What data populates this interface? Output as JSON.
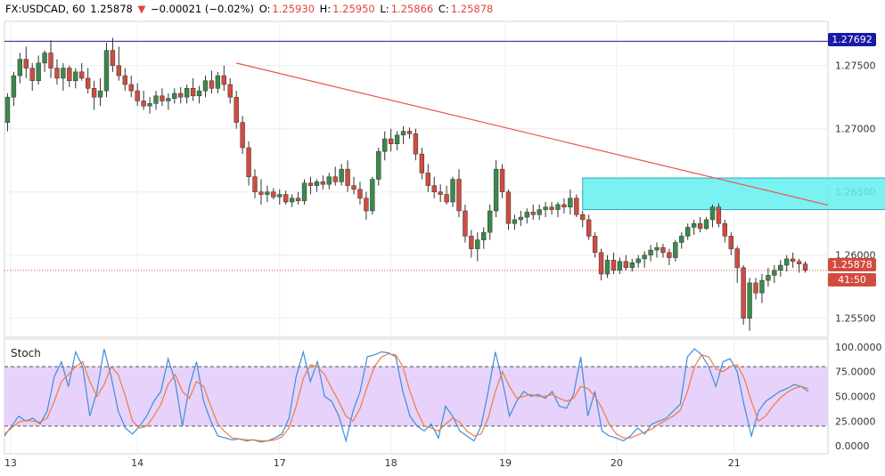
{
  "header": {
    "symbol": "FX:USDCAD, 60",
    "last": "1.25878",
    "change_arrow": "▼",
    "change": "−0.00021 (−0.02%)",
    "o_label": "O:",
    "o": "1.25930",
    "h_label": "H:",
    "h": "1.25950",
    "l_label": "L:",
    "l": "1.25866",
    "c_label": "C:",
    "c": "1.25878"
  },
  "colors": {
    "up": "#3a8a4b",
    "down": "#d24b3f",
    "trend": "#ef5350",
    "zone": "#64f0f0",
    "hline": "#1a1aa6",
    "stoch_k": "#3d8fd6",
    "stoch_d": "#f07b3f",
    "band": "#e6d2fb"
  },
  "badges": {
    "resistance": "1.27692",
    "price": "1.25878",
    "countdown": "41:50"
  },
  "stoch": {
    "label": "Stoch"
  },
  "chart_data": [
    {
      "type": "candlestick",
      "title": "FX:USDCAD, 60",
      "y_axis_ticks": [
        "1.27500",
        "1.27000",
        "1.26500",
        "1.26000",
        "1.25500"
      ],
      "ylim": [
        1.2535,
        1.2785
      ],
      "x_axis_ticks": [
        "13",
        "14",
        "17",
        "18",
        "19",
        "20",
        "21"
      ],
      "candles": [
        [
          1.2705,
          1.2728,
          1.2698,
          1.2725
        ],
        [
          1.2725,
          1.2745,
          1.2718,
          1.2742
        ],
        [
          1.2742,
          1.276,
          1.2736,
          1.2755
        ],
        [
          1.2755,
          1.2765,
          1.274,
          1.2748
        ],
        [
          1.2748,
          1.2752,
          1.273,
          1.2738
        ],
        [
          1.2738,
          1.2758,
          1.2735,
          1.2752
        ],
        [
          1.2752,
          1.2762,
          1.2745,
          1.276
        ],
        [
          1.276,
          1.277,
          1.274,
          1.2748
        ],
        [
          1.2748,
          1.2755,
          1.2735,
          1.274
        ],
        [
          1.274,
          1.2752,
          1.273,
          1.2748
        ],
        [
          1.2748,
          1.275,
          1.2733,
          1.2738
        ],
        [
          1.2738,
          1.2748,
          1.2732,
          1.2745
        ],
        [
          1.2745,
          1.2752,
          1.2738,
          1.274
        ],
        [
          1.274,
          1.2748,
          1.2728,
          1.2732
        ],
        [
          1.2732,
          1.2738,
          1.2715,
          1.2725
        ],
        [
          1.2725,
          1.274,
          1.2718,
          1.273
        ],
        [
          1.273,
          1.2768,
          1.2725,
          1.2762
        ],
        [
          1.2762,
          1.2772,
          1.2745,
          1.275
        ],
        [
          1.275,
          1.2765,
          1.2738,
          1.2742
        ],
        [
          1.2742,
          1.2748,
          1.273,
          1.2735
        ],
        [
          1.2735,
          1.2742,
          1.2725,
          1.273
        ],
        [
          1.273,
          1.2736,
          1.2718,
          1.2722
        ],
        [
          1.2722,
          1.273,
          1.2715,
          1.2718
        ],
        [
          1.2718,
          1.2725,
          1.2712,
          1.272
        ],
        [
          1.272,
          1.273,
          1.2715,
          1.2726
        ],
        [
          1.2726,
          1.2732,
          1.2718,
          1.2722
        ],
        [
          1.2722,
          1.2728,
          1.2715,
          1.2724
        ],
        [
          1.2724,
          1.2732,
          1.272,
          1.2728
        ],
        [
          1.2728,
          1.2733,
          1.272,
          1.2725
        ],
        [
          1.2725,
          1.2735,
          1.272,
          1.2732
        ],
        [
          1.2732,
          1.274,
          1.2722,
          1.2726
        ],
        [
          1.2726,
          1.2734,
          1.272,
          1.273
        ],
        [
          1.273,
          1.2742,
          1.2725,
          1.2738
        ],
        [
          1.2738,
          1.2746,
          1.2728,
          1.2732
        ],
        [
          1.2732,
          1.2745,
          1.2728,
          1.2742
        ],
        [
          1.2742,
          1.275,
          1.273,
          1.2735
        ],
        [
          1.2735,
          1.274,
          1.272,
          1.2725
        ],
        [
          1.2725,
          1.273,
          1.27,
          1.2705
        ],
        [
          1.2705,
          1.271,
          1.268,
          1.2685
        ],
        [
          1.2685,
          1.269,
          1.2655,
          1.2662
        ],
        [
          1.2662,
          1.2668,
          1.2645,
          1.265
        ],
        [
          1.265,
          1.266,
          1.264,
          1.2648
        ],
        [
          1.2648,
          1.2655,
          1.2642,
          1.265
        ],
        [
          1.265,
          1.2653,
          1.2644,
          1.2646
        ],
        [
          1.2646,
          1.2652,
          1.264,
          1.2648
        ],
        [
          1.2648,
          1.2651,
          1.264,
          1.2642
        ],
        [
          1.2642,
          1.2648,
          1.2638,
          1.2645
        ],
        [
          1.2645,
          1.265,
          1.264,
          1.2643
        ],
        [
          1.2643,
          1.266,
          1.264,
          1.2657
        ],
        [
          1.2657,
          1.2662,
          1.2648,
          1.2655
        ],
        [
          1.2655,
          1.266,
          1.265,
          1.2658
        ],
        [
          1.2658,
          1.2663,
          1.2652,
          1.2656
        ],
        [
          1.2656,
          1.2665,
          1.2652,
          1.2662
        ],
        [
          1.2662,
          1.267,
          1.2655,
          1.2658
        ],
        [
          1.2658,
          1.2672,
          1.2655,
          1.2668
        ],
        [
          1.2668,
          1.2675,
          1.265,
          1.2655
        ],
        [
          1.2655,
          1.2662,
          1.2648,
          1.2652
        ],
        [
          1.2652,
          1.2658,
          1.264,
          1.2645
        ],
        [
          1.2645,
          1.265,
          1.2628,
          1.2635
        ],
        [
          1.2635,
          1.2662,
          1.2632,
          1.266
        ],
        [
          1.266,
          1.2685,
          1.2655,
          1.2682
        ],
        [
          1.2682,
          1.2698,
          1.2675,
          1.2692
        ],
        [
          1.2692,
          1.27,
          1.2682,
          1.2688
        ],
        [
          1.2688,
          1.2698,
          1.2683,
          1.2695
        ],
        [
          1.2695,
          1.2702,
          1.2688,
          1.2698
        ],
        [
          1.2698,
          1.2701,
          1.2692,
          1.2696
        ],
        [
          1.2696,
          1.27,
          1.2675,
          1.268
        ],
        [
          1.268,
          1.2685,
          1.266,
          1.2665
        ],
        [
          1.2665,
          1.2672,
          1.265,
          1.2655
        ],
        [
          1.2655,
          1.2662,
          1.2645,
          1.265
        ],
        [
          1.265,
          1.2656,
          1.2642,
          1.2648
        ],
        [
          1.2648,
          1.2655,
          1.264,
          1.2642
        ],
        [
          1.2642,
          1.2662,
          1.2638,
          1.266
        ],
        [
          1.266,
          1.2668,
          1.263,
          1.2635
        ],
        [
          1.2635,
          1.264,
          1.261,
          1.2615
        ],
        [
          1.2615,
          1.262,
          1.2598,
          1.2605
        ],
        [
          1.2605,
          1.2618,
          1.2595,
          1.2612
        ],
        [
          1.2612,
          1.2622,
          1.2605,
          1.2618
        ],
        [
          1.2618,
          1.264,
          1.2612,
          1.2635
        ],
        [
          1.2635,
          1.2675,
          1.263,
          1.2668
        ],
        [
          1.2668,
          1.2672,
          1.2645,
          1.265
        ],
        [
          1.265,
          1.2652,
          1.262,
          1.2625
        ],
        [
          1.2625,
          1.2632,
          1.262,
          1.2628
        ],
        [
          1.2628,
          1.2635,
          1.2623,
          1.263
        ],
        [
          1.263,
          1.2637,
          1.2625,
          1.2634
        ],
        [
          1.2634,
          1.264,
          1.2628,
          1.2632
        ],
        [
          1.2632,
          1.264,
          1.2628,
          1.2636
        ],
        [
          1.2636,
          1.2642,
          1.263,
          1.2638
        ],
        [
          1.2638,
          1.2642,
          1.2632,
          1.2636
        ],
        [
          1.2636,
          1.2642,
          1.263,
          1.264
        ],
        [
          1.264,
          1.2645,
          1.2633,
          1.2638
        ],
        [
          1.2638,
          1.2652,
          1.2632,
          1.2645
        ],
        [
          1.2645,
          1.2648,
          1.263,
          1.2632
        ],
        [
          1.2632,
          1.2635,
          1.2622,
          1.2628
        ],
        [
          1.2628,
          1.2632,
          1.2612,
          1.2615
        ],
        [
          1.2615,
          1.2618,
          1.2598,
          1.2602
        ],
        [
          1.2602,
          1.2605,
          1.258,
          1.2585
        ],
        [
          1.2585,
          1.26,
          1.2582,
          1.2596
        ],
        [
          1.2596,
          1.2602,
          1.2585,
          1.2588
        ],
        [
          1.2588,
          1.2598,
          1.2585,
          1.2595
        ],
        [
          1.2595,
          1.26,
          1.2588,
          1.259
        ],
        [
          1.259,
          1.2597,
          1.2587,
          1.2594
        ],
        [
          1.2594,
          1.26,
          1.259,
          1.2597
        ],
        [
          1.2597,
          1.2603,
          1.259,
          1.26
        ],
        [
          1.26,
          1.2608,
          1.2595,
          1.2604
        ],
        [
          1.2604,
          1.261,
          1.2598,
          1.2606
        ],
        [
          1.2606,
          1.2609,
          1.2598,
          1.2602
        ],
        [
          1.2602,
          1.2605,
          1.2592,
          1.2598
        ],
        [
          1.2598,
          1.2612,
          1.2595,
          1.261
        ],
        [
          1.261,
          1.2618,
          1.2605,
          1.2615
        ],
        [
          1.2615,
          1.2625,
          1.2612,
          1.2622
        ],
        [
          1.2622,
          1.2628,
          1.2616,
          1.2625
        ],
        [
          1.2625,
          1.263,
          1.2618,
          1.2621
        ],
        [
          1.2621,
          1.263,
          1.262,
          1.2628
        ],
        [
          1.2628,
          1.264,
          1.2622,
          1.2638
        ],
        [
          1.2638,
          1.2641,
          1.2622,
          1.2625
        ],
        [
          1.2625,
          1.2628,
          1.261,
          1.2615
        ],
        [
          1.2615,
          1.2618,
          1.26,
          1.2605
        ],
        [
          1.2605,
          1.2607,
          1.2578,
          1.259
        ],
        [
          1.259,
          1.2592,
          1.2545,
          1.255
        ],
        [
          1.255,
          1.2582,
          1.254,
          1.2578
        ],
        [
          1.2578,
          1.2582,
          1.2565,
          1.257
        ],
        [
          1.257,
          1.2585,
          1.2562,
          1.258
        ],
        [
          1.258,
          1.259,
          1.2575,
          1.2584
        ],
        [
          1.2584,
          1.2592,
          1.2578,
          1.2588
        ],
        [
          1.2588,
          1.2596,
          1.2583,
          1.2592
        ],
        [
          1.2592,
          1.26,
          1.2587,
          1.2597
        ],
        [
          1.2597,
          1.2602,
          1.259,
          1.2595
        ],
        [
          1.2595,
          1.2597,
          1.2586,
          1.2593
        ],
        [
          1.2593,
          1.2595,
          1.2586,
          1.2588
        ]
      ],
      "resistance_level": 1.27692,
      "current_price": 1.25878,
      "trendline": [
        [
          37,
          1.2752
        ],
        [
          151,
          1.2618
        ]
      ],
      "zone": {
        "x": [
          93,
          150
        ],
        "y": [
          1.2636,
          1.2661
        ]
      }
    },
    {
      "type": "line",
      "title": "Stoch",
      "y_axis_ticks": [
        "100.0000",
        "75.0000",
        "50.0000",
        "25.0000",
        "0.0000"
      ],
      "ylim": [
        -8,
        108
      ],
      "levels": [
        80,
        20
      ],
      "series": [
        {
          "name": "",
          "color": "#3d8fd6",
          "values": [
            10,
            20,
            30,
            25,
            28,
            22,
            35,
            70,
            85,
            60,
            95,
            80,
            30,
            55,
            98,
            70,
            35,
            18,
            12,
            20,
            30,
            45,
            55,
            88,
            65,
            20,
            60,
            85,
            45,
            25,
            10,
            8,
            6,
            7,
            5,
            6,
            4,
            5,
            8,
            12,
            28,
            70,
            95,
            65,
            85,
            50,
            45,
            30,
            5,
            35,
            55,
            90,
            92,
            95,
            94,
            90,
            55,
            30,
            20,
            15,
            22,
            8,
            40,
            30,
            15,
            10,
            5,
            20,
            55,
            95,
            65,
            30,
            45,
            55,
            50,
            52,
            48,
            55,
            40,
            38,
            52,
            90,
            30,
            55,
            15,
            10,
            8,
            5,
            10,
            18,
            12,
            22,
            25,
            28,
            35,
            42,
            90,
            98,
            92,
            80,
            60,
            85,
            88,
            75,
            40,
            10,
            35,
            45,
            50,
            55,
            58,
            62,
            60,
            55
          ]
        },
        {
          "name": "",
          "color": "#f07b3f",
          "values": [
            12,
            18,
            24,
            26,
            25,
            24,
            28,
            45,
            65,
            72,
            80,
            85,
            65,
            50,
            62,
            80,
            72,
            50,
            25,
            18,
            20,
            30,
            42,
            62,
            72,
            55,
            48,
            65,
            60,
            40,
            22,
            14,
            8,
            7,
            6,
            6,
            5,
            5,
            6,
            9,
            18,
            40,
            68,
            82,
            80,
            72,
            58,
            45,
            30,
            25,
            38,
            60,
            80,
            90,
            93,
            92,
            80,
            55,
            35,
            20,
            18,
            15,
            22,
            28,
            24,
            15,
            10,
            12,
            28,
            55,
            75,
            60,
            48,
            50,
            52,
            50,
            50,
            52,
            48,
            45,
            48,
            60,
            58,
            50,
            38,
            22,
            12,
            8,
            8,
            11,
            14,
            17,
            22,
            26,
            30,
            36,
            55,
            80,
            92,
            90,
            78,
            75,
            80,
            82,
            68,
            45,
            25,
            30,
            40,
            48,
            54,
            58,
            60,
            58
          ]
        }
      ],
      "x_axis_ticks": [
        "13",
        "14",
        "17",
        "18",
        "19",
        "20",
        "21"
      ]
    }
  ]
}
